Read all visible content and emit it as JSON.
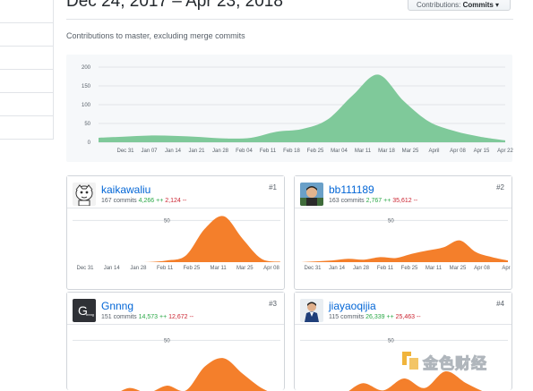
{
  "header": {
    "date_range": "Dec 24, 2017 – Apr 23, 2018",
    "contrib_prefix": "Contributions: ",
    "contrib_value": "Commits ▾",
    "subtitle": "Contributions to master, excluding merge commits"
  },
  "colors": {
    "area_main": "#7fc99a",
    "area_user": "#f47f2b",
    "link": "#0366d6",
    "add": "#28a745",
    "del": "#cb2431"
  },
  "chart_data": [
    {
      "type": "area",
      "title": "",
      "x": [
        "Dec 31",
        "Jan 07",
        "Jan 14",
        "Jan 21",
        "Jan 28",
        "Feb 04",
        "Feb 11",
        "Feb 18",
        "Feb 25",
        "Mar 04",
        "Mar 11",
        "Mar 18",
        "Mar 25",
        "Apr 01",
        "Apr 08",
        "Apr 15",
        "Apr 22"
      ],
      "y_ticks": [
        0,
        50,
        100,
        150,
        200
      ],
      "x_tick_labels": [
        "Dec 31",
        "Jan 07",
        "Jan 14",
        "Jan 21",
        "Jan 28",
        "Feb 04",
        "Feb 11",
        "Feb 18",
        "Feb 25",
        "Mar 04",
        "Mar 11",
        "Mar 18",
        "Mar 25",
        "April",
        "Apr 08",
        "Apr 15",
        "Apr 22"
      ],
      "ylim": [
        0,
        200
      ],
      "series": [
        {
          "values": [
            12,
            15,
            18,
            17,
            14,
            10,
            12,
            28,
            35,
            60,
            125,
            180,
            110,
            55,
            30,
            15,
            5
          ]
        }
      ]
    },
    {
      "type": "area",
      "title": "",
      "x_tick_labels": [
        "Dec 31",
        "Jan 14",
        "Jan 28",
        "Feb 11",
        "Feb 25",
        "Mar 11",
        "Mar 25",
        "Apr 08"
      ],
      "y_ticks": [
        50
      ],
      "ylim": [
        0,
        60
      ],
      "series": [
        {
          "values": [
            0,
            0,
            0,
            0,
            0.2,
            2,
            8,
            40,
            55,
            28,
            4,
            0.5
          ]
        }
      ]
    },
    {
      "type": "area",
      "title": "",
      "x_tick_labels": [
        "Dec 31",
        "Jan 14",
        "Jan 28",
        "Feb 11",
        "Feb 25",
        "Mar 11",
        "Mar 25",
        "Apr 08",
        "Apr"
      ],
      "y_ticks": [
        50
      ],
      "ylim": [
        0,
        60
      ],
      "series": [
        {
          "values": [
            0,
            1,
            2,
            4,
            3,
            6,
            5,
            10,
            14,
            18,
            26,
            12,
            6,
            2
          ]
        }
      ]
    },
    {
      "type": "area",
      "title": "",
      "x_tick_labels": [],
      "y_ticks": [
        50
      ],
      "ylim": [
        0,
        60
      ],
      "series": [
        {
          "values": [
            0,
            1,
            3,
            10,
            6,
            12,
            8,
            28,
            35,
            22,
            10,
            3
          ]
        }
      ]
    },
    {
      "type": "area",
      "title": "",
      "x_tick_labels": [],
      "y_ticks": [
        50
      ],
      "ylim": [
        0,
        60
      ],
      "series": [
        {
          "values": [
            0,
            2,
            4,
            14,
            8,
            18,
            10,
            24,
            14,
            6,
            2
          ]
        }
      ]
    }
  ],
  "contributors": [
    {
      "name": "kaikawaliu",
      "commits": "167 commits",
      "additions": "4,266 ++",
      "deletions": "2,124 --",
      "rank": "#1",
      "avatar": "cartoon-avatar"
    },
    {
      "name": "bb111189",
      "commits": "163 commits",
      "additions": "2,767 ++",
      "deletions": "35,612 --",
      "rank": "#2",
      "avatar": "photo-avatar"
    },
    {
      "name": "Gnnng",
      "commits": "151 commits",
      "additions": "14,573 ++",
      "deletions": "12,672 --",
      "rank": "#3",
      "avatar": "letter-g-avatar"
    },
    {
      "name": "jiayaoqijia",
      "commits": "115 commits",
      "additions": "26,339 ++",
      "deletions": "25,463 --",
      "rank": "#4",
      "avatar": "photo-avatar"
    }
  ],
  "watermark": {
    "text": "金色财经"
  }
}
